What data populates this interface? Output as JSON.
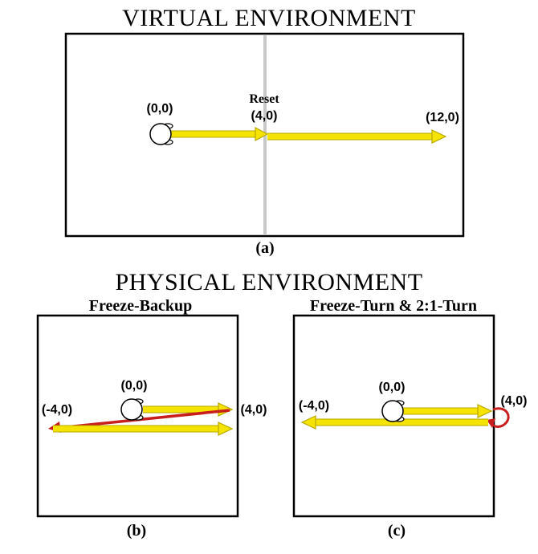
{
  "panel_a": {
    "title": "VIRTUAL ENVIRONMENT",
    "caption": "(a)",
    "reset_label": "Reset",
    "origin_label": "(0,0)",
    "reset_point_label": "(4,0)",
    "end_label": "(12,0)"
  },
  "physical": {
    "title": "PHYSICAL  ENVIRONMENT"
  },
  "panel_b": {
    "subtitle": "Freeze-Backup",
    "caption": "(b)",
    "origin_label": "(0,0)",
    "left_label": "(-4,0)",
    "right_label": "(4,0)"
  },
  "panel_c": {
    "subtitle": "Freeze-Turn & 2:1-Turn",
    "caption": "(c)",
    "origin_label": "(0,0)",
    "left_label": "(-4,0)",
    "right_label": "(4,0)"
  },
  "colors": {
    "path": "#f4e400",
    "path_outline": "#b8a800",
    "reset_path": "#c81e1e",
    "reset_line": "#c8c8c8",
    "border": "#000000"
  }
}
